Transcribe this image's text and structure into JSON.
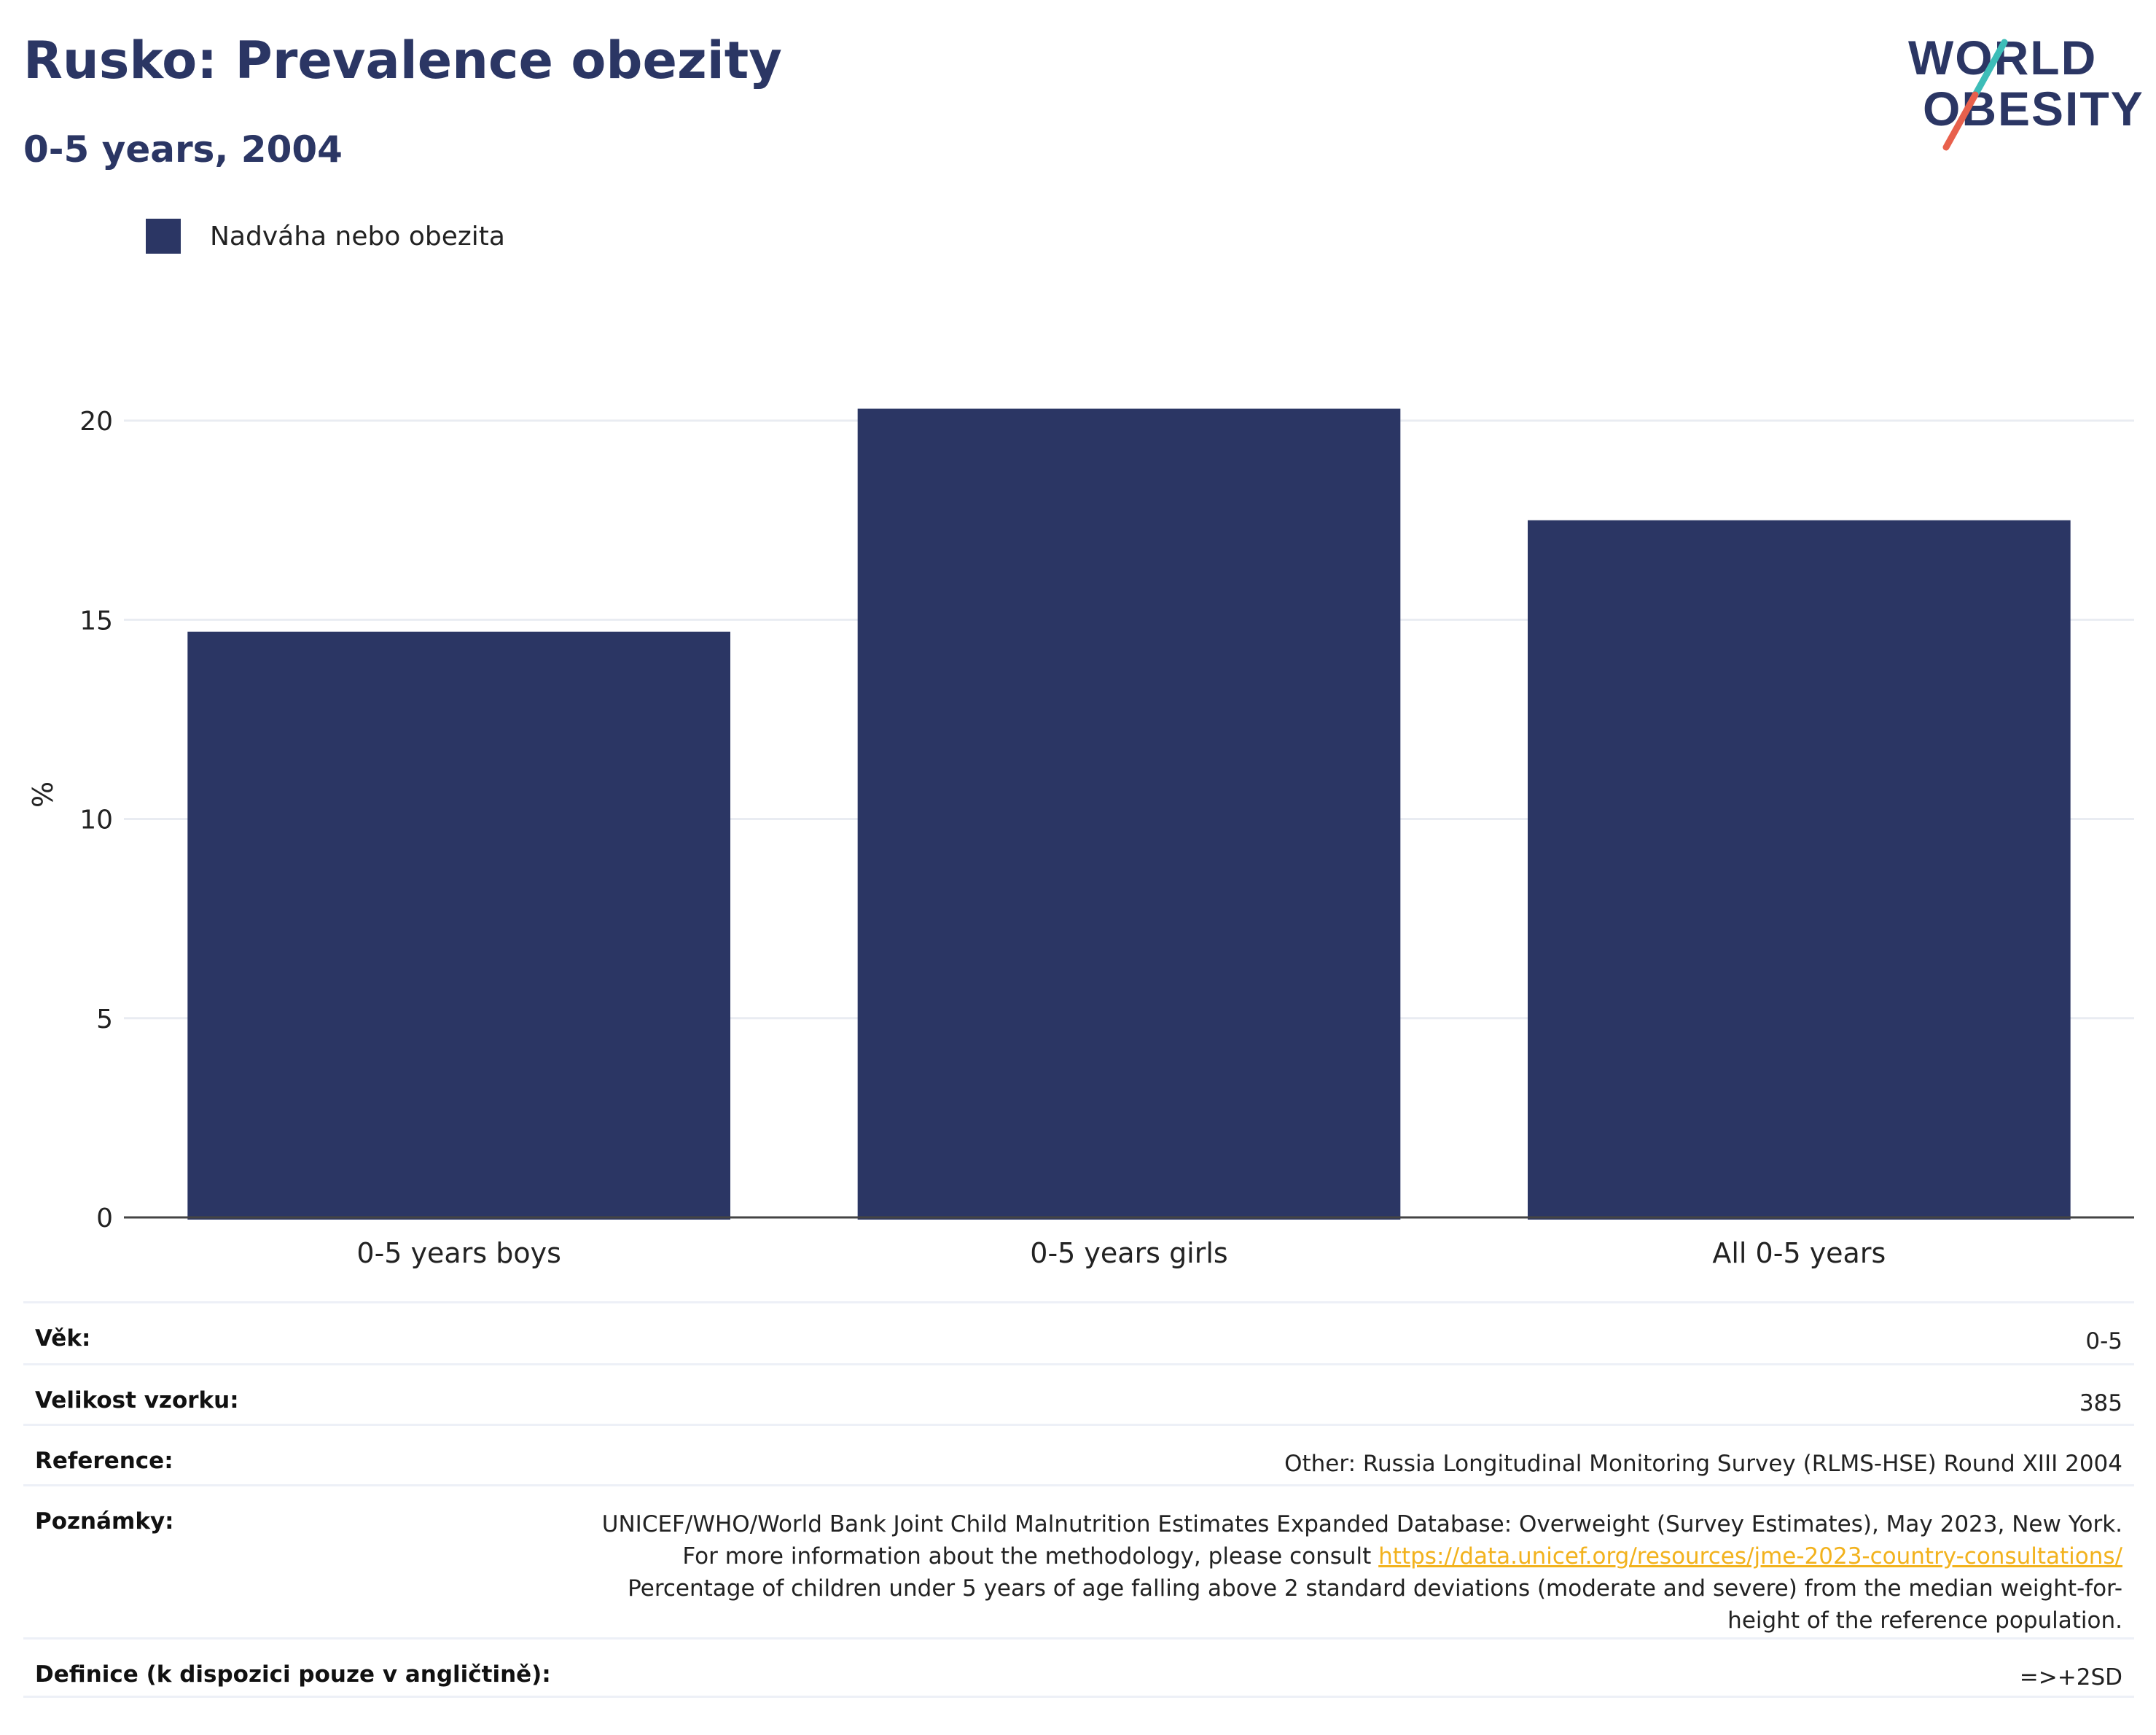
{
  "header": {
    "title": "Rusko: Prevalence obezity",
    "subtitle": "0-5 years, 2004"
  },
  "logo": {
    "line1": "WORLD",
    "line2": "OBESITY"
  },
  "colors": {
    "bar": "#2b3664",
    "title": "#2b3664",
    "link": "#f2b21d",
    "logo_teal": "#3dbdb8",
    "logo_coral": "#e8604c"
  },
  "chart_data": {
    "type": "bar",
    "categories": [
      "0-5 years boys",
      "0-5 years girls",
      "All 0-5 years"
    ],
    "series": [
      {
        "name": "Nadváha nebo obezita",
        "values": [
          14.7,
          20.3,
          17.5
        ]
      }
    ],
    "ylabel": "%",
    "ylim": [
      0,
      22
    ],
    "yticks": [
      0,
      5,
      10,
      15,
      20
    ],
    "grid": true,
    "legend_position": "top-left"
  },
  "meta": {
    "rows": [
      {
        "label": "Věk:",
        "value": "0-5"
      },
      {
        "label": "Velikost vzorku:",
        "value": "385"
      },
      {
        "label": "Reference:",
        "value": "Other: Russia Longitudinal Monitoring Survey (RLMS-HSE) Round XIII 2004"
      },
      {
        "label": "Poznámky:",
        "value_before": "UNICEF/WHO/World Bank Joint Child Malnutrition Estimates Expanded Database: Overweight (Survey Estimates), May 2023, New York. For more information about the methodology, please consult ",
        "link": "https://data.unicef.org/resources/jme-2023-country-consultations/",
        "value_after": " Percentage of children under 5 years of age falling above 2 standard deviations (moderate and severe) from the median weight-for-height of the reference population."
      },
      {
        "label": "Definice (k dispozici pouze v angličtině):",
        "value": "=>+2SD"
      }
    ]
  }
}
